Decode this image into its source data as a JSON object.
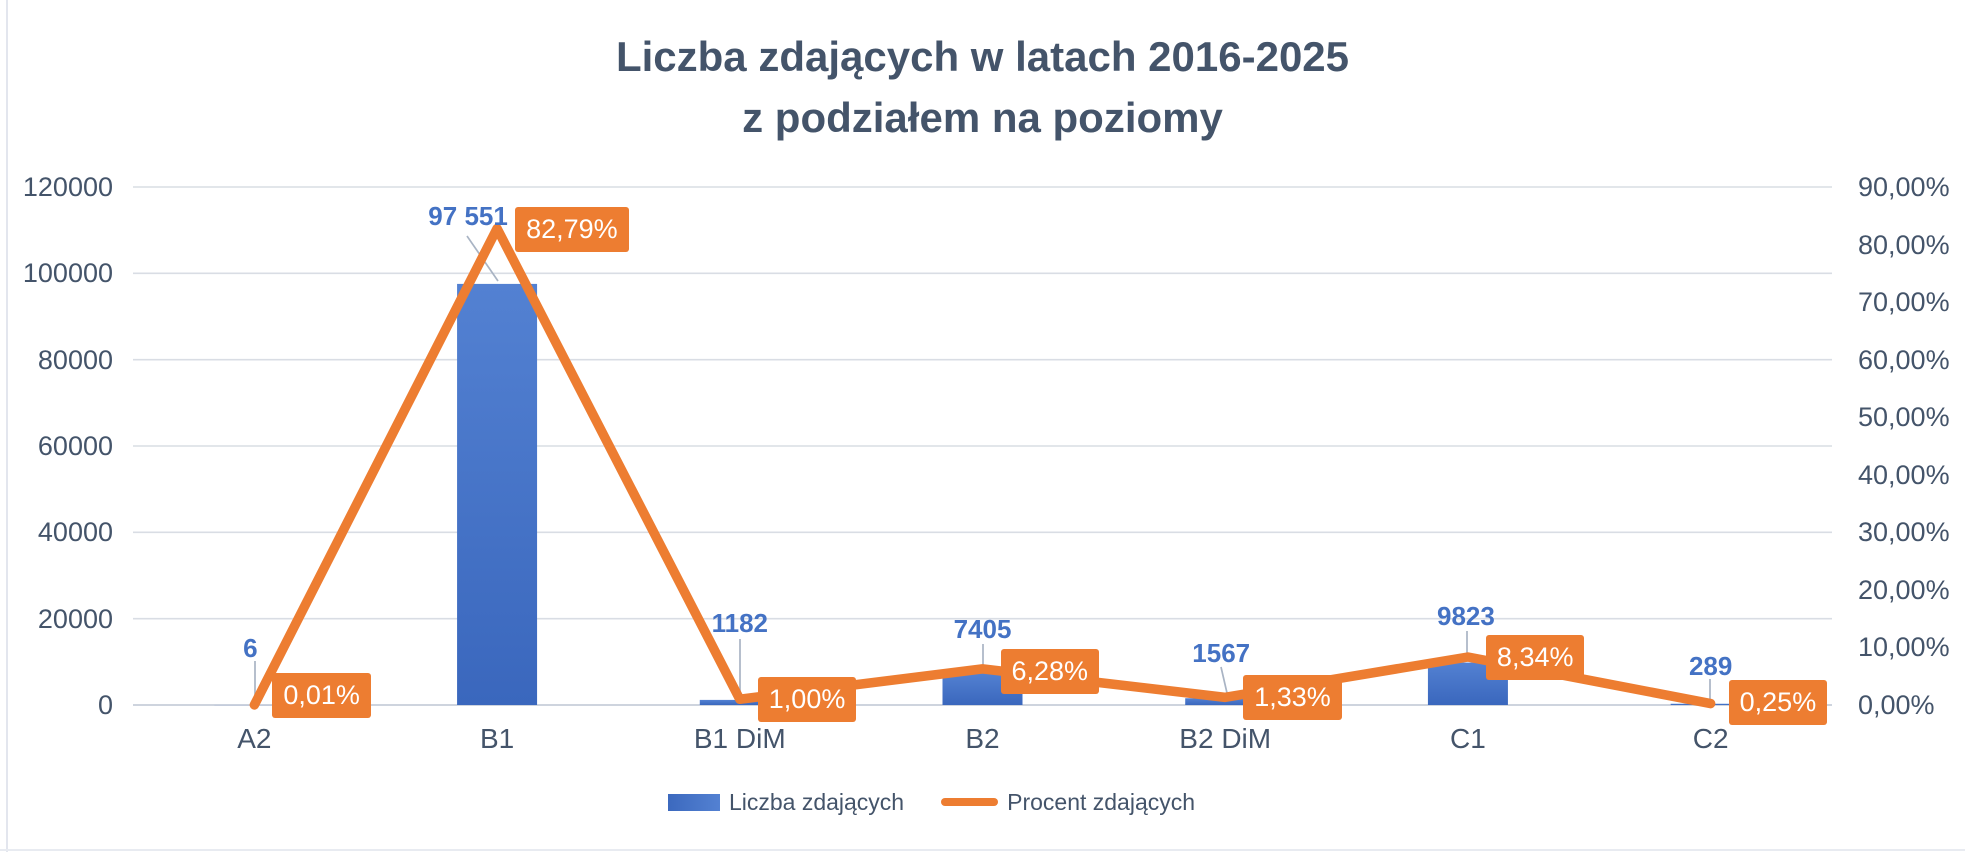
{
  "title": {
    "line1": "Liczba zdających w latach 2016-2025",
    "line2": "z podziałem na poziomy"
  },
  "chart_data": {
    "type": "bar",
    "subtype": "combo-bar-line",
    "title": "Liczba zdających w latach 2016-2025 z podziałem na poziomy",
    "categories": [
      "A2",
      "B1",
      "B1 DiM",
      "B2",
      "B2 DiM",
      "C1",
      "C2"
    ],
    "series": [
      {
        "name": "Liczba zdających",
        "type": "bar",
        "axis": "left",
        "values": [
          6,
          97551,
          1182,
          7405,
          1567,
          9823,
          289
        ],
        "data_labels": [
          "6",
          "97 551",
          "1182",
          "7405",
          "1567",
          "9823",
          "289"
        ],
        "color": "#4472C4"
      },
      {
        "name": "Procent zdających",
        "type": "line",
        "axis": "right",
        "values": [
          0.01,
          82.79,
          1.0,
          6.28,
          1.33,
          8.34,
          0.25
        ],
        "data_labels": [
          "0,01%",
          "82,79%",
          "1,00%",
          "6,28%",
          "1,33%",
          "8,34%",
          "0,25%"
        ],
        "color": "#ED7D31"
      }
    ],
    "left_axis": {
      "min": 0,
      "max": 120000,
      "step": 20000,
      "tick_labels": [
        "0",
        "20000",
        "40000",
        "60000",
        "80000",
        "100000",
        "120000"
      ]
    },
    "right_axis": {
      "min": 0,
      "max": 90,
      "step": 10,
      "tick_labels": [
        "0,00%",
        "10,00%",
        "20,00%",
        "30,00%",
        "40,00%",
        "50,00%",
        "60,00%",
        "70,00%",
        "80,00%",
        "90,00%"
      ]
    },
    "gridlines": true,
    "legend_position": "bottom"
  },
  "legend": {
    "items": [
      {
        "label": "Liczba zdających",
        "swatch": "bar"
      },
      {
        "label": "Procent zdających",
        "swatch": "line"
      }
    ]
  },
  "colors": {
    "title_text": "#44546A",
    "axis_text": "#44546A",
    "bar_fill": "#4472C4",
    "bar_gradient_top": "#5381D2",
    "bar_gradient_bottom": "#3A67BD",
    "line_stroke": "#ED7D31",
    "value_label_blue": "#4472C4",
    "percent_box_bg": "#ED7D31",
    "percent_box_text": "#FFFFFF",
    "gridline": "#D9DDE4",
    "zero_axis_line": "#C7CEDA",
    "leader_line": "#A9B4C4",
    "chart_border": "#E3E6EE"
  }
}
